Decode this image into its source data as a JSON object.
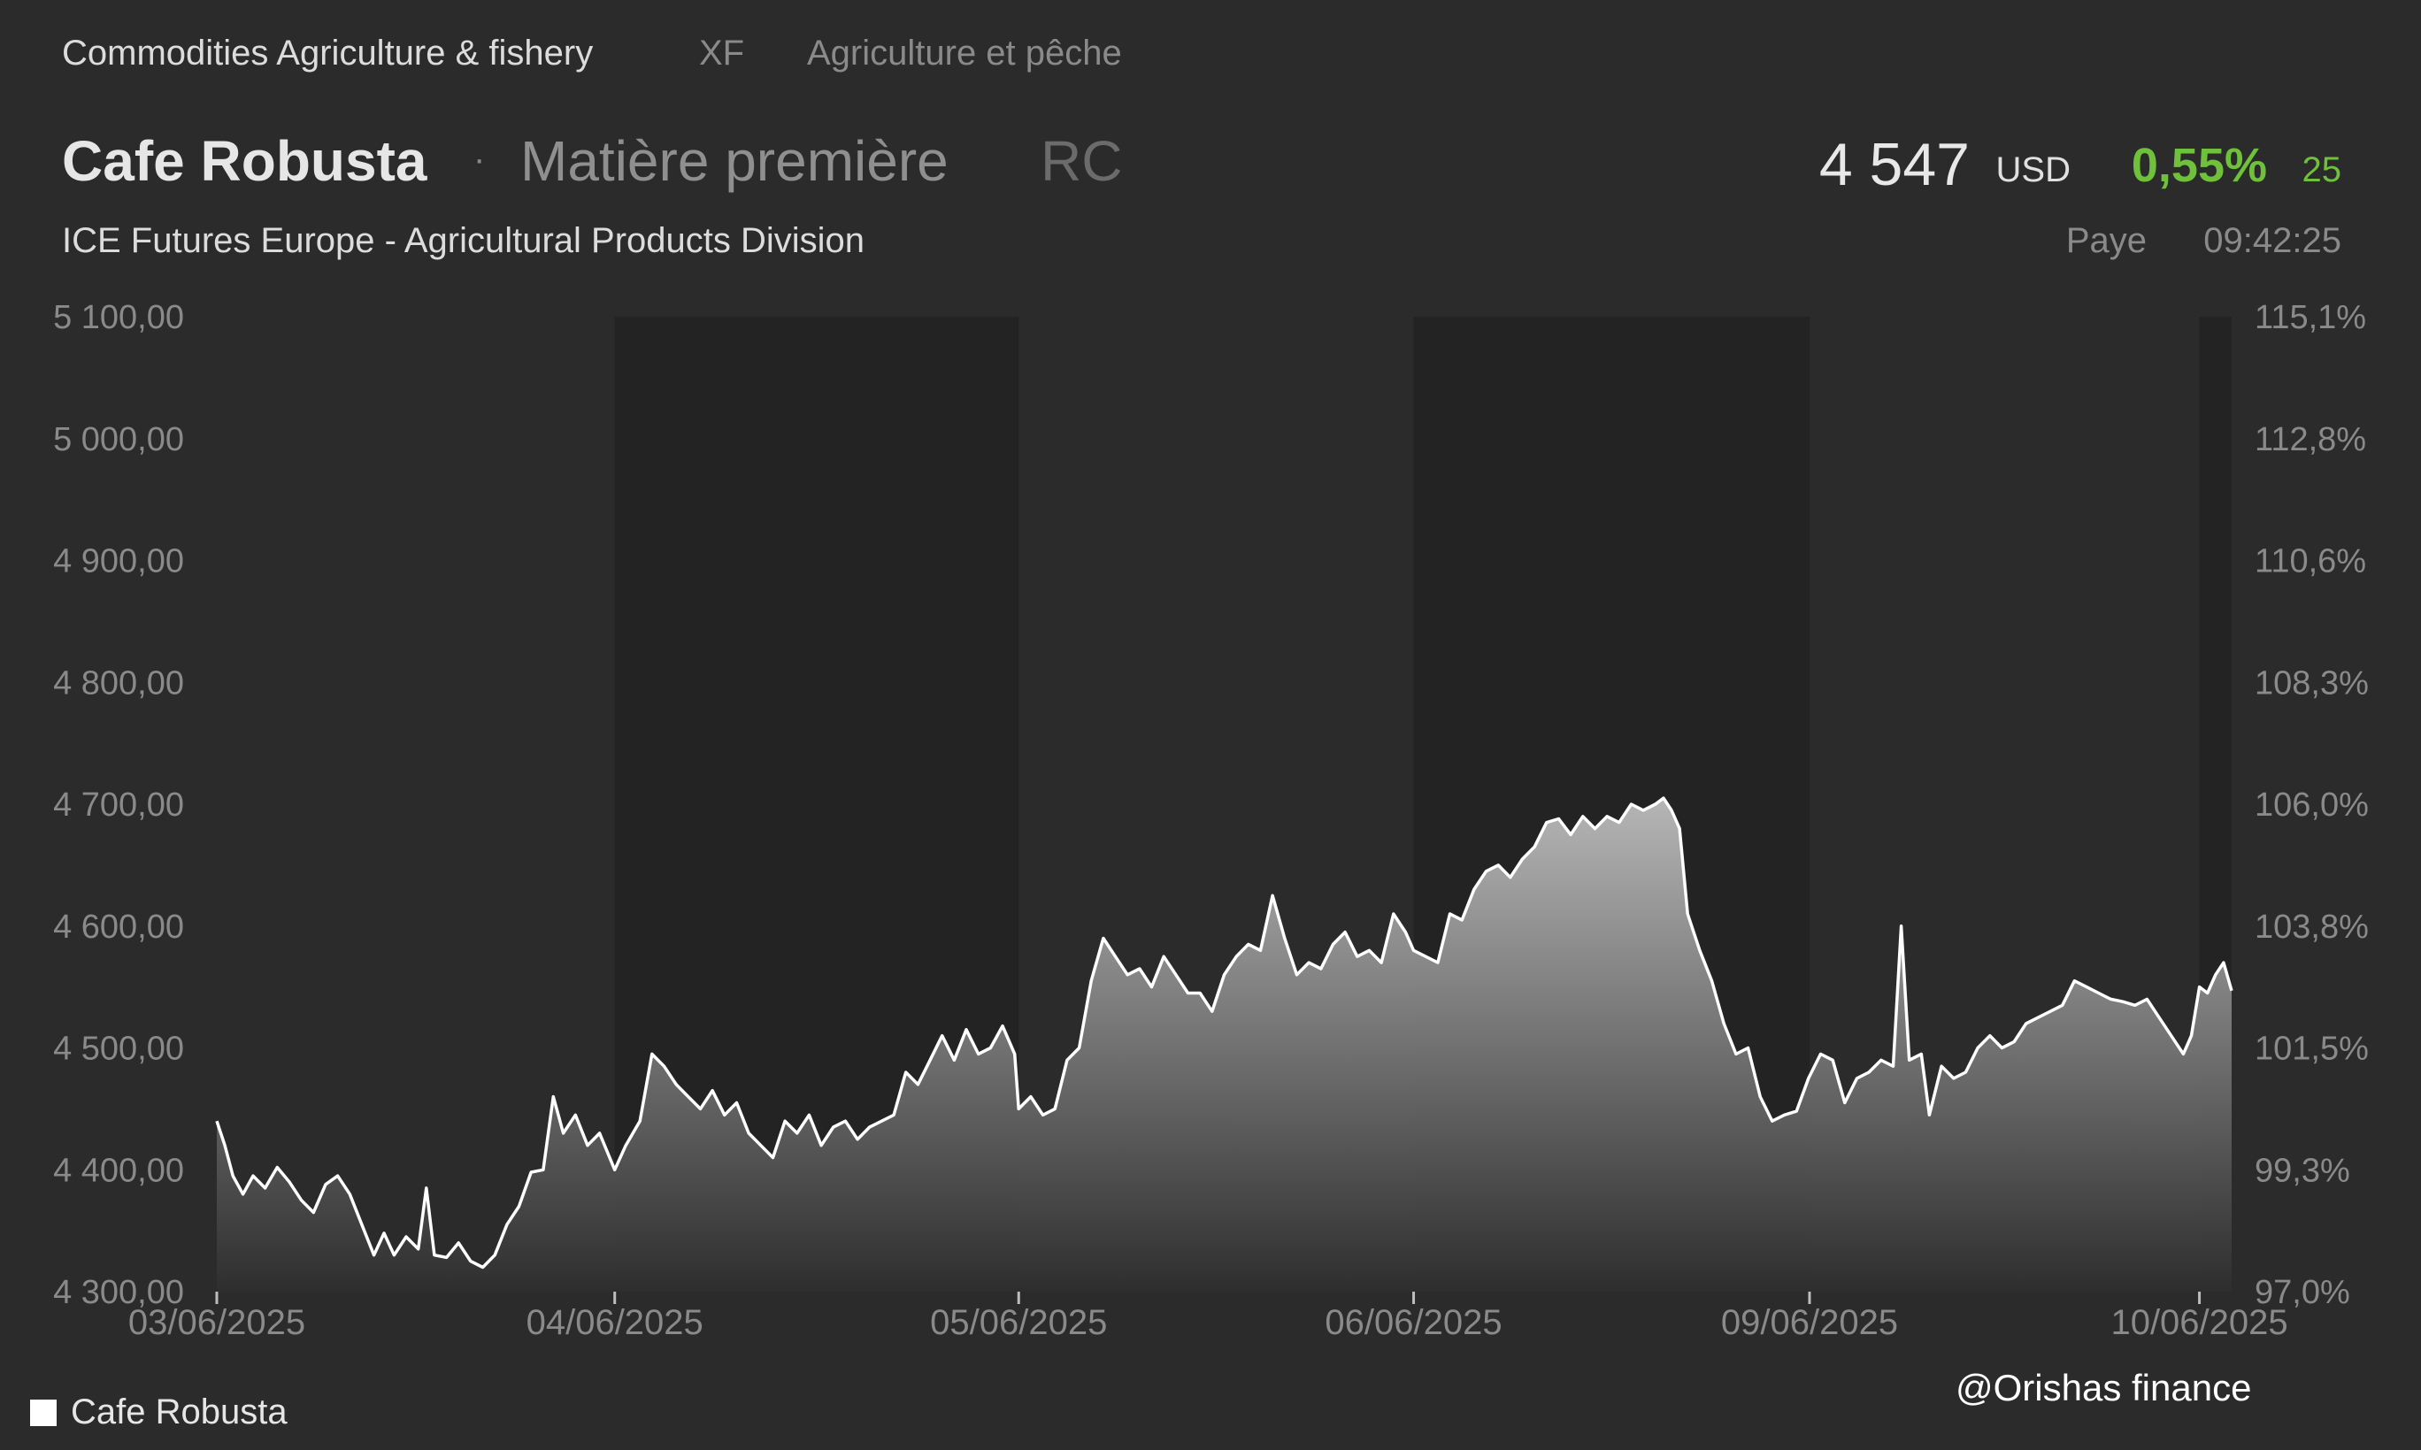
{
  "header": {
    "breadcrumb": [
      "Commodities Agriculture & fishery",
      "XF",
      "Agriculture et pêche"
    ],
    "title": "Cafe Robusta",
    "separator": "·",
    "type": "Matière première",
    "code": "RC",
    "exchange": "ICE Futures Europe - Agricultural Products Division"
  },
  "quote": {
    "price": "4 547",
    "currency": "USD",
    "change_pct": "0,55%",
    "change_abs": "25",
    "market": "Paye",
    "time": "09:42:25"
  },
  "legend": {
    "label": "Cafe Robusta"
  },
  "watermark": "@Orishas finance",
  "colors": {
    "background": "#2b2b2b",
    "band_dark": "#232323",
    "line": "#ffffff",
    "positive": "#6fc03a"
  },
  "chart_data": {
    "type": "area",
    "title": "",
    "series": [
      {
        "name": "Cafe Robusta"
      }
    ],
    "ylim": [
      4300,
      5100
    ],
    "yticks": [
      "4 300,00",
      "4 400,00",
      "4 500,00",
      "4 600,00",
      "4 700,00",
      "4 800,00",
      "4 900,00",
      "5 000,00",
      "5 100,00"
    ],
    "y2ticks": [
      "97,0%",
      "99,3%",
      "101,5%",
      "103,8%",
      "106,0%",
      "108,3%",
      "110,6%",
      "112,8%",
      "115,1%"
    ],
    "xticks": [
      "03/06/2025",
      "04/06/2025",
      "05/06/2025",
      "06/06/2025",
      "09/06/2025",
      "10/06/2025"
    ],
    "x_domain": [
      0,
      1
    ],
    "tick_positions": [
      0,
      0.1975,
      0.398,
      0.594,
      0.7905,
      0.984
    ],
    "dark_bands": [
      [
        0.1975,
        0.398
      ],
      [
        0.594,
        0.7905
      ],
      [
        0.984,
        1.0
      ]
    ],
    "points": [
      [
        0.0,
        4440
      ],
      [
        0.004,
        4420
      ],
      [
        0.008,
        4395
      ],
      [
        0.013,
        4380
      ],
      [
        0.018,
        4395
      ],
      [
        0.024,
        4385
      ],
      [
        0.03,
        4402
      ],
      [
        0.036,
        4390
      ],
      [
        0.042,
        4375
      ],
      [
        0.048,
        4365
      ],
      [
        0.054,
        4388
      ],
      [
        0.06,
        4395
      ],
      [
        0.066,
        4380
      ],
      [
        0.072,
        4355
      ],
      [
        0.078,
        4330
      ],
      [
        0.083,
        4348
      ],
      [
        0.088,
        4330
      ],
      [
        0.094,
        4345
      ],
      [
        0.1,
        4335
      ],
      [
        0.104,
        4385
      ],
      [
        0.108,
        4330
      ],
      [
        0.114,
        4328
      ],
      [
        0.12,
        4340
      ],
      [
        0.126,
        4325
      ],
      [
        0.132,
        4320
      ],
      [
        0.138,
        4330
      ],
      [
        0.144,
        4355
      ],
      [
        0.15,
        4370
      ],
      [
        0.156,
        4398
      ],
      [
        0.162,
        4400
      ],
      [
        0.167,
        4460
      ],
      [
        0.172,
        4430
      ],
      [
        0.178,
        4445
      ],
      [
        0.184,
        4420
      ],
      [
        0.19,
        4430
      ],
      [
        0.1975,
        4400
      ],
      [
        0.203,
        4420
      ],
      [
        0.21,
        4440
      ],
      [
        0.216,
        4495
      ],
      [
        0.222,
        4485
      ],
      [
        0.228,
        4470
      ],
      [
        0.234,
        4460
      ],
      [
        0.24,
        4450
      ],
      [
        0.246,
        4465
      ],
      [
        0.252,
        4445
      ],
      [
        0.258,
        4455
      ],
      [
        0.264,
        4430
      ],
      [
        0.27,
        4420
      ],
      [
        0.276,
        4410
      ],
      [
        0.282,
        4440
      ],
      [
        0.288,
        4430
      ],
      [
        0.294,
        4445
      ],
      [
        0.3,
        4420
      ],
      [
        0.306,
        4435
      ],
      [
        0.312,
        4440
      ],
      [
        0.318,
        4425
      ],
      [
        0.324,
        4435
      ],
      [
        0.33,
        4440
      ],
      [
        0.336,
        4445
      ],
      [
        0.342,
        4480
      ],
      [
        0.348,
        4470
      ],
      [
        0.354,
        4490
      ],
      [
        0.36,
        4510
      ],
      [
        0.366,
        4490
      ],
      [
        0.372,
        4515
      ],
      [
        0.378,
        4495
      ],
      [
        0.384,
        4500
      ],
      [
        0.39,
        4518
      ],
      [
        0.396,
        4495
      ],
      [
        0.398,
        4450
      ],
      [
        0.404,
        4460
      ],
      [
        0.41,
        4445
      ],
      [
        0.416,
        4450
      ],
      [
        0.422,
        4490
      ],
      [
        0.428,
        4500
      ],
      [
        0.434,
        4555
      ],
      [
        0.44,
        4590
      ],
      [
        0.446,
        4575
      ],
      [
        0.452,
        4560
      ],
      [
        0.458,
        4565
      ],
      [
        0.464,
        4550
      ],
      [
        0.47,
        4575
      ],
      [
        0.476,
        4560
      ],
      [
        0.482,
        4545
      ],
      [
        0.488,
        4545
      ],
      [
        0.494,
        4530
      ],
      [
        0.5,
        4560
      ],
      [
        0.506,
        4575
      ],
      [
        0.512,
        4585
      ],
      [
        0.518,
        4580
      ],
      [
        0.524,
        4625
      ],
      [
        0.53,
        4590
      ],
      [
        0.536,
        4560
      ],
      [
        0.542,
        4570
      ],
      [
        0.548,
        4565
      ],
      [
        0.554,
        4585
      ],
      [
        0.56,
        4595
      ],
      [
        0.566,
        4575
      ],
      [
        0.572,
        4580
      ],
      [
        0.578,
        4570
      ],
      [
        0.584,
        4610
      ],
      [
        0.59,
        4595
      ],
      [
        0.594,
        4580
      ],
      [
        0.6,
        4575
      ],
      [
        0.606,
        4570
      ],
      [
        0.612,
        4610
      ],
      [
        0.618,
        4605
      ],
      [
        0.624,
        4630
      ],
      [
        0.63,
        4645
      ],
      [
        0.636,
        4650
      ],
      [
        0.642,
        4640
      ],
      [
        0.648,
        4655
      ],
      [
        0.654,
        4665
      ],
      [
        0.66,
        4685
      ],
      [
        0.666,
        4688
      ],
      [
        0.672,
        4675
      ],
      [
        0.678,
        4690
      ],
      [
        0.684,
        4680
      ],
      [
        0.69,
        4690
      ],
      [
        0.696,
        4685
      ],
      [
        0.702,
        4700
      ],
      [
        0.708,
        4695
      ],
      [
        0.714,
        4700
      ],
      [
        0.718,
        4705
      ],
      [
        0.722,
        4695
      ],
      [
        0.726,
        4680
      ],
      [
        0.73,
        4610
      ],
      [
        0.736,
        4580
      ],
      [
        0.742,
        4555
      ],
      [
        0.748,
        4520
      ],
      [
        0.754,
        4495
      ],
      [
        0.76,
        4500
      ],
      [
        0.766,
        4460
      ],
      [
        0.772,
        4440
      ],
      [
        0.778,
        4445
      ],
      [
        0.784,
        4448
      ],
      [
        0.79,
        4475
      ],
      [
        0.796,
        4495
      ],
      [
        0.802,
        4490
      ],
      [
        0.808,
        4455
      ],
      [
        0.814,
        4475
      ],
      [
        0.82,
        4480
      ],
      [
        0.826,
        4490
      ],
      [
        0.832,
        4485
      ],
      [
        0.836,
        4600
      ],
      [
        0.84,
        4490
      ],
      [
        0.846,
        4495
      ],
      [
        0.85,
        4445
      ],
      [
        0.856,
        4485
      ],
      [
        0.862,
        4475
      ],
      [
        0.868,
        4480
      ],
      [
        0.874,
        4500
      ],
      [
        0.88,
        4510
      ],
      [
        0.886,
        4500
      ],
      [
        0.892,
        4505
      ],
      [
        0.898,
        4520
      ],
      [
        0.904,
        4525
      ],
      [
        0.91,
        4530
      ],
      [
        0.916,
        4535
      ],
      [
        0.922,
        4555
      ],
      [
        0.928,
        4550
      ],
      [
        0.934,
        4545
      ],
      [
        0.94,
        4540
      ],
      [
        0.946,
        4538
      ],
      [
        0.952,
        4535
      ],
      [
        0.958,
        4540
      ],
      [
        0.964,
        4525
      ],
      [
        0.97,
        4510
      ],
      [
        0.976,
        4495
      ],
      [
        0.98,
        4510
      ],
      [
        0.984,
        4550
      ],
      [
        0.988,
        4545
      ],
      [
        0.992,
        4560
      ],
      [
        0.996,
        4570
      ],
      [
        1.0,
        4547
      ]
    ]
  }
}
